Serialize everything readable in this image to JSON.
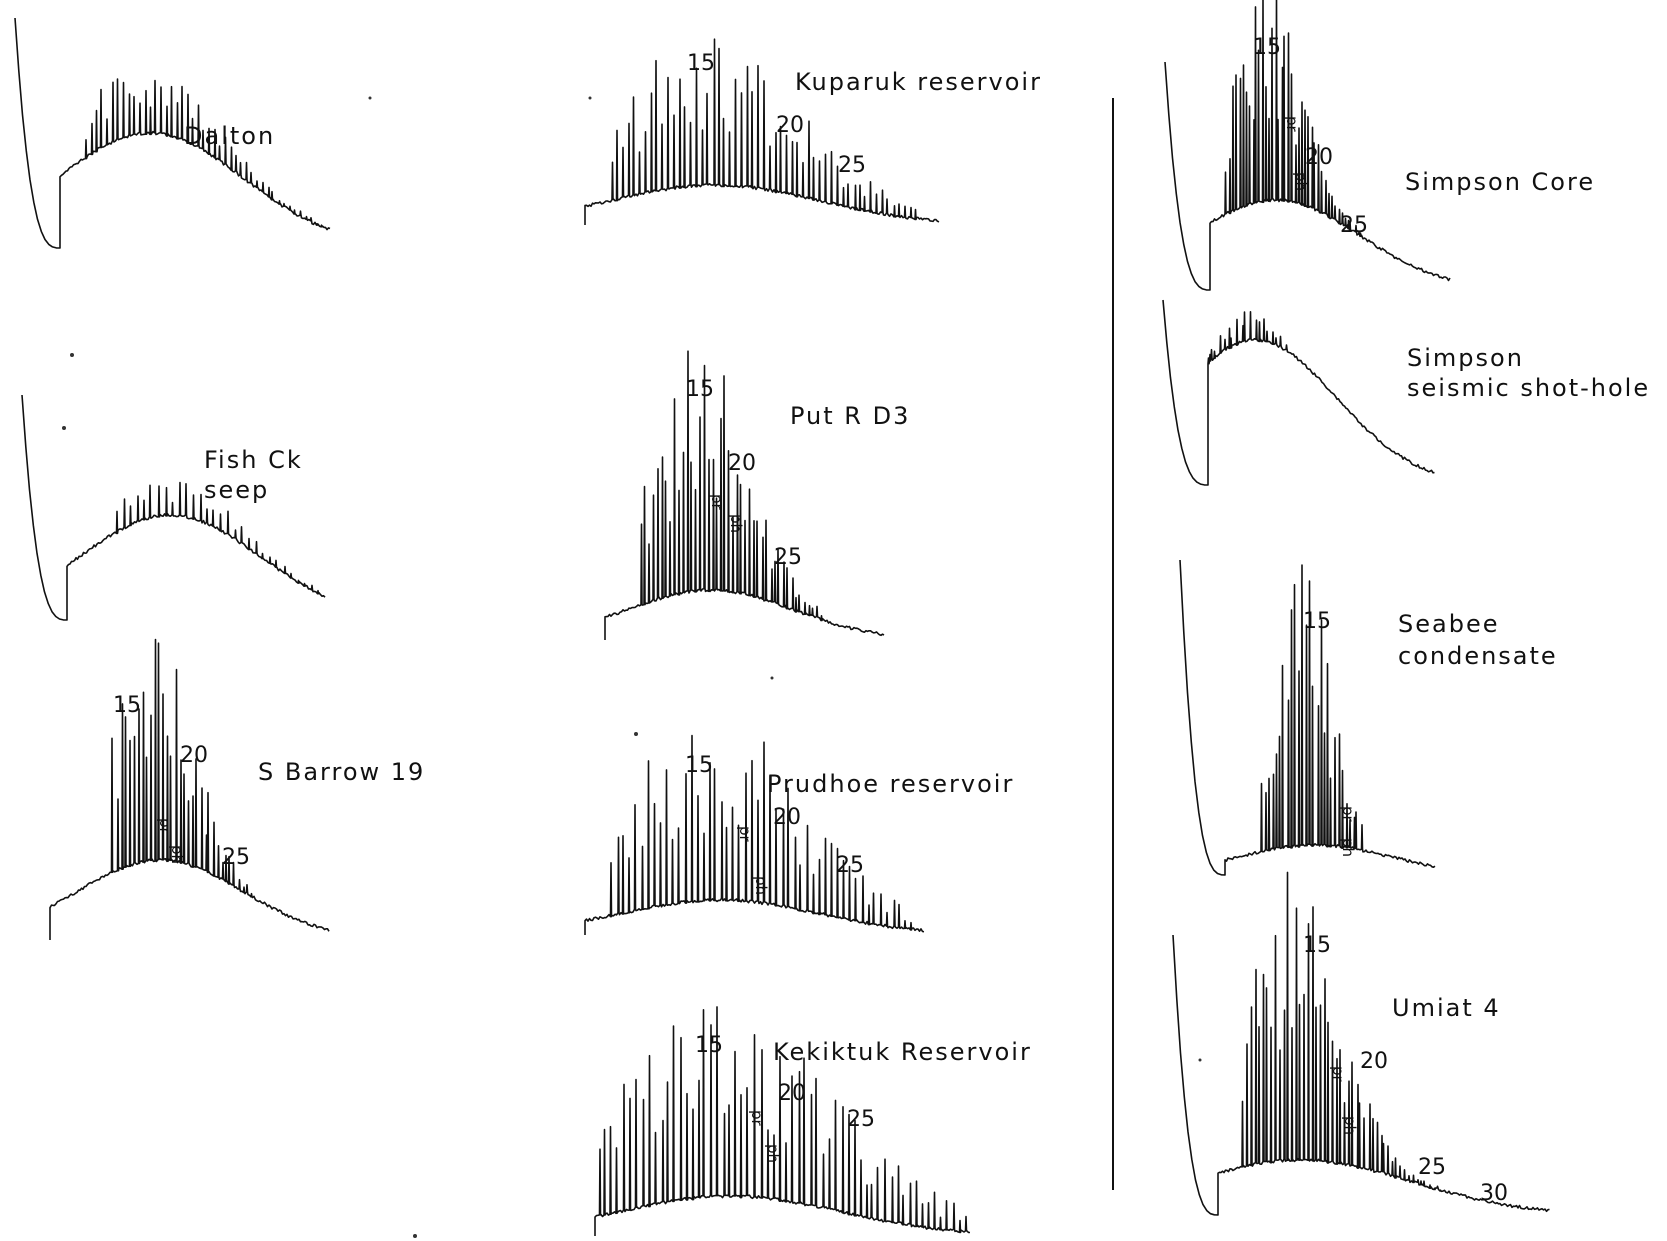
{
  "figure": {
    "panels": [
      {
        "id": "dalton",
        "lines": [
          "Dalton"
        ],
        "peak_labels": []
      },
      {
        "id": "fish-ck",
        "lines": [
          "Fish Ck",
          "seep"
        ],
        "peak_labels": []
      },
      {
        "id": "s-barrow",
        "lines": [
          "S Barrow 19"
        ],
        "peak_labels": [
          "15",
          "20",
          "25"
        ],
        "tags": [
          "pr",
          "ph"
        ]
      },
      {
        "id": "kuparuk",
        "lines": [
          "Kuparuk reservoir"
        ],
        "peak_labels": [
          "15",
          "20",
          "25"
        ]
      },
      {
        "id": "put-r",
        "lines": [
          "Put R D3"
        ],
        "peak_labels": [
          "15",
          "20",
          "25"
        ],
        "tags": [
          "pr",
          "ph"
        ]
      },
      {
        "id": "prudhoe",
        "lines": [
          "Prudhoe reservoir"
        ],
        "peak_labels": [
          "15",
          "20",
          "25"
        ],
        "tags": [
          "pr",
          "ph"
        ]
      },
      {
        "id": "kekiktuk",
        "lines": [
          "Kekiktuk Reservoir"
        ],
        "peak_labels": [
          "15",
          "20",
          "25"
        ],
        "tags": [
          "pr",
          "ph"
        ]
      },
      {
        "id": "simpson-core",
        "lines": [
          "Simpson Core"
        ],
        "peak_labels": [
          "15",
          "20",
          "25"
        ],
        "tags": [
          "pr",
          "ph"
        ]
      },
      {
        "id": "simpson-shot",
        "lines": [
          "Simpson",
          "seismic shot-hole"
        ],
        "peak_labels": []
      },
      {
        "id": "seabee",
        "lines": [
          "Seabee",
          "condensate"
        ],
        "peak_labels": [
          "15"
        ],
        "tags": [
          "pr",
          "ph"
        ]
      },
      {
        "id": "umiat",
        "lines": [
          "Umiat 4"
        ],
        "peak_labels": [
          "15",
          "20",
          "25",
          "30"
        ],
        "tags": [
          "pr",
          "ph"
        ]
      }
    ]
  }
}
